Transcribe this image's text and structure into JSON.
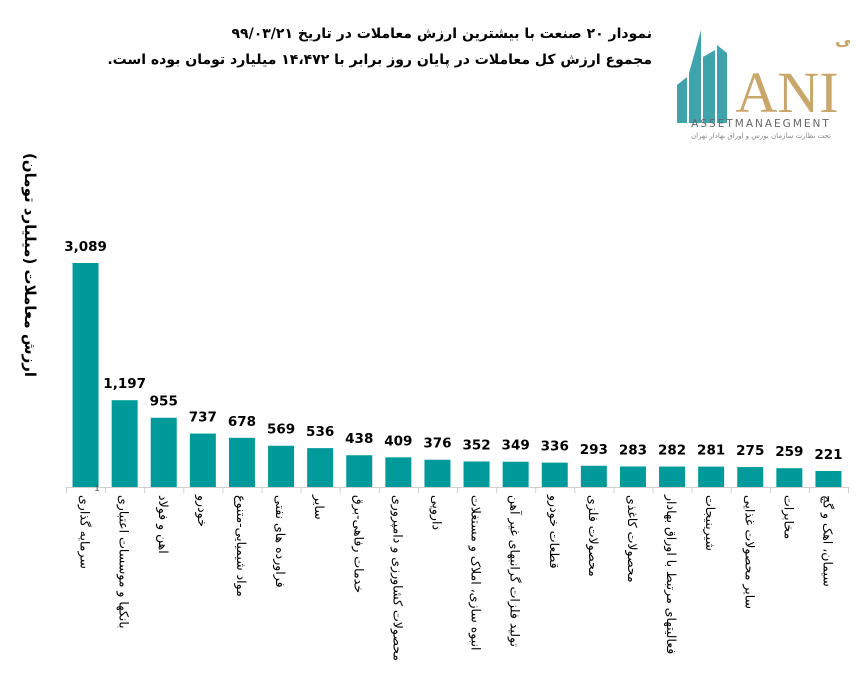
{
  "title_line1": "نمودار ۲۰ صنعت با بیشترین ارزش معاملات در تاریخ ۹۹/۰۳/۲۱",
  "title_line2": "مجموع ارزش کل معاملات در پایان روز برابر با ۱۴،۴۷۲ میلیارد تومان بوده است.",
  "logo": {
    "text_fa": "سبدگردان مانی",
    "text_en": "ANI",
    "subtitle": "ASSETMANAEGMENT",
    "note": "تحت نظارت سازمان بورس و اوراق بهادار تهران",
    "colors": {
      "teal": "#3FA3AC",
      "gold": "#C9A76B"
    }
  },
  "chart_data": {
    "type": "bar",
    "title": "",
    "xlabel": "",
    "ylabel": "ارزش معاملات (میلیارد تومان)",
    "axis_marker": "1",
    "ylim": [
      0,
      3089
    ],
    "grid": false,
    "bar_color": "#009A9A",
    "categories": [
      "سرمایه گذاری",
      "بانکها و موسسات اعتباری",
      "اهن و فولاد",
      "خودرو",
      "مواد شیمیایی-متنوع",
      "فراورده های نفتی",
      "سایر",
      "خدمات رفاهی-برق",
      "محصولات کشاورزی و دامپروری",
      "دارویی",
      "انبوه سازی، املاک و مستغلات",
      "تولید فلزات گرانبهای غیر آهن",
      "قطعات خودرو",
      "محصولات فلزی",
      "محصولات کاغذی",
      "فعالیتهای مرتبط با اوراق بهادار",
      "شیرینیجات",
      "سایر محصولات غذایی",
      "مخابرات",
      "سیمان، اهک و گچ"
    ],
    "values": [
      3089,
      1197,
      955,
      737,
      678,
      569,
      536,
      438,
      409,
      376,
      352,
      349,
      336,
      293,
      283,
      282,
      281,
      275,
      259,
      221
    ],
    "data_labels": [
      "3,089",
      "1,197",
      "955",
      "737",
      "678",
      "569",
      "536",
      "438",
      "409",
      "376",
      "352",
      "349",
      "336",
      "293",
      "283",
      "282",
      "281",
      "275",
      "259",
      "221"
    ]
  }
}
